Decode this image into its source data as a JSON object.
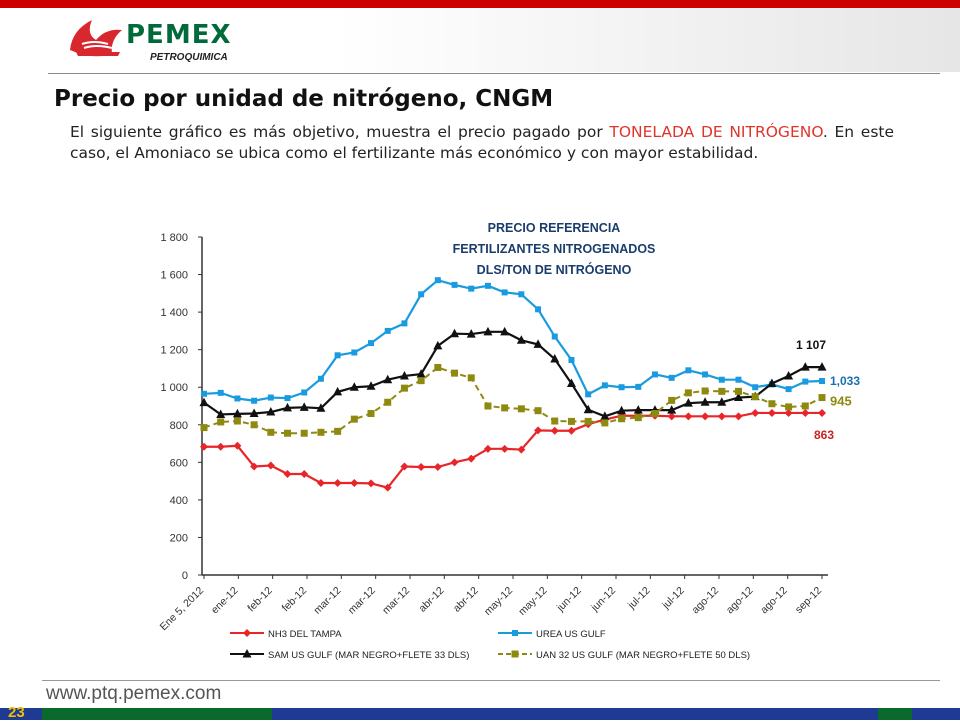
{
  "header": {
    "brand": "PEMEX",
    "sub_brand": "PETROQUIMICA",
    "logo_icon": "pemex-eagle-logo-icon"
  },
  "slide": {
    "title": "Precio por unidad de nitrógeno, CNGM",
    "para_1": "El siguiente gráfico es más objetivo, muestra el precio pagado por ",
    "para_highlight": "TONELADA DE NITRÓGENO",
    "para_2": ". En este caso, el Amoniaco se ubica como el fertilizante más económico y con mayor estabilidad."
  },
  "footer": {
    "url": "www.ptq.pemex.com",
    "page_number": "23"
  },
  "chart_data": {
    "type": "line",
    "title_lines": [
      "PRECIO REFERENCIA",
      "FERTILIZANTES NITROGENADOS",
      "DLS/TON DE NITRÓGENO"
    ],
    "ylim": [
      0,
      1800
    ],
    "yticks": [
      0,
      200,
      400,
      600,
      800,
      1000,
      1200,
      1400,
      1600,
      1800
    ],
    "ytick_labels": [
      "0",
      "200",
      "400",
      "600",
      "800",
      "1 000",
      "1 200",
      "1 400",
      "1 600",
      "1 800"
    ],
    "x_labels": [
      "Ene 5, 2012",
      "ene-12",
      "feb-12",
      "feb-12",
      "mar-12",
      "mar-12",
      "mar-12",
      "abr-12",
      "abr-12",
      "may-12",
      "may-12",
      "jun-12",
      "jun-12",
      "jul-12",
      "jul-12",
      "ago-12",
      "ago-12",
      "ago-12",
      "sep-12"
    ],
    "legend_placement": "bottom",
    "series": [
      {
        "name": "NH3 DEL TAMPA",
        "color": "#e8262a",
        "marker": "diamond",
        "dash": false,
        "end_label": "863",
        "values": [
          683,
          683,
          688,
          578,
          583,
          538,
          538,
          490,
          490,
          490,
          488,
          465,
          578,
          575,
          575,
          600,
          620,
          672,
          672,
          668,
          770,
          768,
          768,
          803,
          828,
          848,
          848,
          848,
          845,
          845,
          845,
          845,
          845,
          863,
          863,
          863,
          863,
          863
        ]
      },
      {
        "name": "UREA US GULF",
        "color": "#1a9be0",
        "marker": "square",
        "dash": false,
        "end_label": "1,033",
        "values": [
          965,
          970,
          940,
          928,
          945,
          942,
          972,
          1045,
          1170,
          1185,
          1235,
          1300,
          1340,
          1495,
          1570,
          1545,
          1525,
          1540,
          1505,
          1495,
          1415,
          1270,
          1145,
          962,
          1010,
          1000,
          1002,
          1068,
          1050,
          1090,
          1068,
          1040,
          1040,
          1000,
          1015,
          990,
          1030,
          1033
        ]
      },
      {
        "name": "SAM US GULF (MAR NEGRO+FLETE 33 DLS)",
        "color": "#111111",
        "marker": "triangle",
        "dash": false,
        "end_label": "1 107",
        "values": [
          918,
          855,
          858,
          860,
          868,
          890,
          893,
          888,
          975,
          1000,
          1005,
          1040,
          1060,
          1070,
          1220,
          1285,
          1283,
          1295,
          1295,
          1250,
          1228,
          1150,
          1020,
          880,
          845,
          875,
          878,
          878,
          878,
          915,
          920,
          920,
          945,
          950,
          1020,
          1060,
          1107,
          1107
        ]
      },
      {
        "name": "UAN 32 US GULF (MAR NEGRO+FLETE 50 DLS)",
        "color": "#8e8a10",
        "marker": "square",
        "dash": true,
        "end_label": "945",
        "values": [
          785,
          815,
          820,
          800,
          760,
          755,
          755,
          760,
          765,
          830,
          860,
          920,
          995,
          1035,
          1105,
          1075,
          1050,
          900,
          890,
          885,
          875,
          820,
          818,
          818,
          810,
          832,
          838,
          860,
          930,
          970,
          980,
          978,
          978,
          950,
          912,
          895,
          900,
          945
        ]
      }
    ]
  }
}
